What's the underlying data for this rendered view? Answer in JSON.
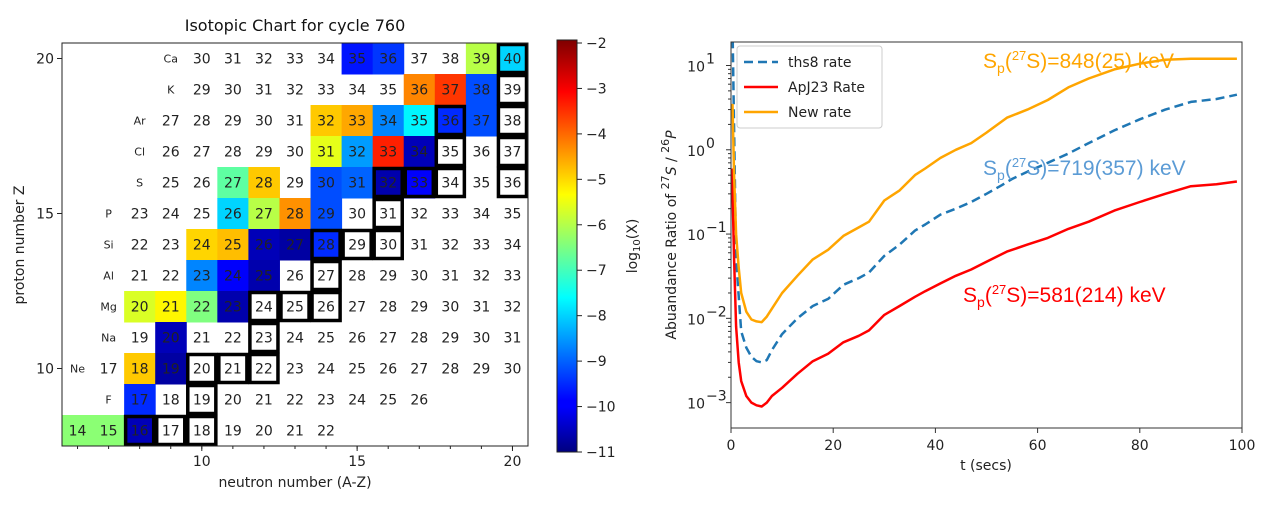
{
  "chart_data": [
    {
      "type": "heatmap",
      "title": "Isotopic Chart for cycle 760",
      "xlabel": "neutron number (A-Z)",
      "ylabel": "proton number Z",
      "xlim": [
        5.5,
        20.5
      ],
      "ylim": [
        7.5,
        20.5
      ],
      "xticks": [
        10,
        15,
        20
      ],
      "yticks": [
        10,
        15,
        20
      ],
      "colorbar": {
        "label": "log10(X)",
        "colormap": "jet",
        "range": [
          -11,
          -2
        ],
        "ticks": [
          -2,
          -3,
          -4,
          -5,
          -6,
          -7,
          -8,
          -9,
          -10,
          -11
        ]
      },
      "rows": [
        {
          "z": 20,
          "element": "Ca",
          "label_n": 9,
          "n_start": 10,
          "mass_numbers": [
            30,
            31,
            32,
            33,
            34,
            35,
            36,
            37,
            38,
            39,
            40
          ],
          "log10_abundance": {
            "15": -9.7,
            "16": -9.4,
            "19": -6.0,
            "20": -8.0
          },
          "stable_n": [
            20
          ]
        },
        {
          "z": 19,
          "element": "K",
          "label_n": 9,
          "n_start": 10,
          "mass_numbers": [
            29,
            30,
            31,
            32,
            33,
            34,
            35,
            36,
            37,
            38,
            39
          ],
          "log10_abundance": {
            "17": -4.3,
            "18": -3.6,
            "19": -9.2
          },
          "stable_n": [
            20
          ]
        },
        {
          "z": 18,
          "element": "Ar",
          "label_n": 8,
          "n_start": 9,
          "mass_numbers": [
            27,
            28,
            29,
            30,
            31,
            32,
            33,
            34,
            35,
            36,
            37,
            38
          ],
          "log10_abundance": {
            "14": -4.9,
            "15": -4.6,
            "16": -8.7,
            "17": -7.7,
            "18": -9.5,
            "19": -9.2
          },
          "stable_n": [
            18,
            20
          ]
        },
        {
          "z": 17,
          "element": "Cl",
          "label_n": 8,
          "n_start": 9,
          "mass_numbers": [
            26,
            27,
            28,
            29,
            30,
            31,
            32,
            33,
            34,
            35,
            36,
            37
          ],
          "log10_abundance": {
            "14": -5.6,
            "15": -8.5,
            "16": -3.4,
            "17": -10.5
          },
          "stable_n": [
            18,
            20
          ]
        },
        {
          "z": 16,
          "element": "S",
          "label_n": 8,
          "n_start": 9,
          "mass_numbers": [
            25,
            26,
            27,
            28,
            29,
            30,
            31,
            32,
            33,
            34,
            35,
            36
          ],
          "log10_abundance": {
            "11": -6.8,
            "12": -4.9,
            "14": -9.2,
            "15": -9.0,
            "16": -10.6,
            "17": -9.9
          },
          "stable_n": [
            16,
            17,
            18,
            20
          ]
        },
        {
          "z": 15,
          "element": "P",
          "label_n": 7,
          "n_start": 8,
          "mass_numbers": [
            23,
            24,
            25,
            26,
            27,
            28,
            29,
            30,
            31,
            32,
            33,
            34,
            35
          ],
          "log10_abundance": {
            "11": -8.0,
            "12": -6.0,
            "13": -4.4,
            "14": -9.2
          },
          "stable_n": [
            16
          ]
        },
        {
          "z": 14,
          "element": "Si",
          "label_n": 7,
          "n_start": 8,
          "mass_numbers": [
            22,
            23,
            24,
            25,
            26,
            27,
            28,
            29,
            30,
            31,
            32,
            33,
            34
          ],
          "log10_abundance": {
            "10": -5.0,
            "11": -4.8,
            "12": -10.5,
            "13": -10.7,
            "14": -9.5
          },
          "stable_n": [
            14,
            15,
            16
          ]
        },
        {
          "z": 13,
          "element": "Al",
          "label_n": 7,
          "n_start": 8,
          "mass_numbers": [
            21,
            22,
            23,
            24,
            25,
            26,
            27,
            28,
            29,
            30,
            31,
            32,
            33
          ],
          "log10_abundance": {
            "10": -8.7,
            "11": -9.9,
            "12": -10.6
          },
          "stable_n": [
            14
          ]
        },
        {
          "z": 12,
          "element": "Mg",
          "label_n": 7,
          "n_start": 8,
          "mass_numbers": [
            20,
            21,
            22,
            23,
            24,
            25,
            26,
            27,
            28,
            29,
            30,
            31,
            32
          ],
          "log10_abundance": {
            "8": -5.7,
            "9": -5.3,
            "10": -6.5,
            "11": -10.6
          },
          "stable_n": [
            12,
            13,
            14
          ]
        },
        {
          "z": 11,
          "element": "Na",
          "label_n": 7,
          "n_start": 8,
          "mass_numbers": [
            19,
            20,
            21,
            22,
            23,
            24,
            25,
            26,
            27,
            28,
            29,
            30,
            31
          ],
          "log10_abundance": {
            "9": -10.5
          },
          "stable_n": [
            12
          ]
        },
        {
          "z": 10,
          "element": "Ne",
          "label_n": 6,
          "n_start": 7,
          "mass_numbers": [
            17,
            18,
            19,
            20,
            21,
            22,
            23,
            24,
            25,
            26,
            27,
            28,
            29,
            30
          ],
          "log10_abundance": {
            "8": -4.9,
            "9": -10.7
          },
          "stable_n": [
            10,
            11,
            12
          ]
        },
        {
          "z": 9,
          "element": "F",
          "label_n": 7,
          "n_start": 8,
          "mass_numbers": [
            17,
            18,
            19,
            20,
            21,
            22,
            23,
            24,
            25,
            26
          ],
          "log10_abundance": {
            "8": -9.5
          },
          "stable_n": [
            10
          ]
        },
        {
          "z": 8,
          "element": "",
          "label_n": 5,
          "n_start": 6,
          "mass_numbers": [
            14,
            15,
            16,
            17,
            18,
            19,
            20,
            21,
            22
          ],
          "log10_abundance": {
            "6": -6.4,
            "7": -6.4,
            "8": -10.5
          },
          "stable_n": [
            8,
            9,
            10
          ]
        }
      ]
    },
    {
      "type": "line",
      "xlabel": "t (secs)",
      "ylabel": {
        "prefix": "Abuandance Ratio of ",
        "sup1": "27",
        "sym1": "S",
        "sep": " / ",
        "sup2": "26",
        "sym2": "P"
      },
      "xlim": [
        0,
        100
      ],
      "ylim": [
        0.0005,
        19
      ],
      "yscale": "log",
      "xticks": [
        0,
        20,
        40,
        60,
        80,
        100
      ],
      "yticks": [
        {
          "base": "10",
          "exp": "1",
          "value": 10
        },
        {
          "base": "10",
          "exp": "0",
          "value": 1
        },
        {
          "base": "10",
          "exp": "−1",
          "value": 0.1
        },
        {
          "base": "10",
          "exp": "−2",
          "value": 0.01
        },
        {
          "base": "10",
          "exp": "−3",
          "value": 0.001
        }
      ],
      "legend_position": "top-left",
      "series": [
        {
          "name": "ths8 rate",
          "color": "#1f77b4",
          "style": "dashed",
          "x": [
            0.3,
            1,
            2,
            3,
            4,
            5,
            6,
            7,
            8,
            10,
            13,
            16,
            19,
            22,
            25,
            27,
            30,
            33,
            36,
            38,
            41,
            44,
            47,
            50,
            53,
            55,
            58,
            62,
            66,
            70,
            75,
            80,
            85,
            90,
            95,
            99
          ],
          "y": [
            30,
            0.05,
            0.007,
            0.0045,
            0.0035,
            0.0031,
            0.003,
            0.0032,
            0.0042,
            0.0065,
            0.01,
            0.014,
            0.017,
            0.025,
            0.03,
            0.035,
            0.055,
            0.075,
            0.11,
            0.13,
            0.17,
            0.2,
            0.24,
            0.3,
            0.38,
            0.45,
            0.55,
            0.7,
            0.9,
            1.2,
            1.7,
            2.3,
            3.0,
            3.7,
            4.0,
            4.5
          ]
        },
        {
          "name": "ApJ23 Rate",
          "color": "#ff0000",
          "style": "solid",
          "x": [
            0.2,
            0.6,
            1,
            1.5,
            2,
            3,
            4,
            5,
            6,
            7,
            8,
            10,
            13,
            16,
            19,
            22,
            25,
            27,
            30,
            33,
            36,
            38,
            41,
            44,
            47,
            50,
            54,
            58,
            62,
            66,
            70,
            75,
            80,
            85,
            90,
            95,
            99
          ],
          "y": [
            0.6,
            0.05,
            0.008,
            0.003,
            0.0018,
            0.0012,
            0.001,
            0.00093,
            0.0009,
            0.001,
            0.0012,
            0.0015,
            0.0022,
            0.0031,
            0.0038,
            0.0052,
            0.0062,
            0.0072,
            0.011,
            0.014,
            0.018,
            0.021,
            0.026,
            0.032,
            0.038,
            0.047,
            0.062,
            0.075,
            0.09,
            0.115,
            0.14,
            0.19,
            0.24,
            0.3,
            0.37,
            0.39,
            0.42
          ]
        },
        {
          "name": "New rate",
          "color": "#ffa500",
          "style": "solid",
          "x": [
            0.3,
            0.6,
            1,
            1.5,
            2,
            3,
            4,
            5,
            6,
            7,
            8,
            10,
            13,
            16,
            19,
            22,
            25,
            27,
            30,
            33,
            36,
            38,
            41,
            44,
            47,
            50,
            54,
            58,
            62,
            66,
            70,
            75,
            80,
            85,
            90,
            95,
            99
          ],
          "y": [
            3.5,
            0.5,
            0.1,
            0.04,
            0.02,
            0.012,
            0.0097,
            0.0092,
            0.009,
            0.0105,
            0.013,
            0.02,
            0.032,
            0.05,
            0.065,
            0.095,
            0.12,
            0.14,
            0.25,
            0.33,
            0.5,
            0.6,
            0.8,
            1.0,
            1.2,
            1.6,
            2.4,
            3.0,
            3.9,
            5.5,
            7.0,
            9.0,
            10.5,
            11.7,
            12,
            12,
            12
          ]
        }
      ],
      "annotations": [
        {
          "color": "#ffa500",
          "s": "S",
          "sub": "p",
          "sup": "27",
          "text": "S)=848(25) keV"
        },
        {
          "color": "#5b9bd5",
          "s": "S",
          "sub": "p",
          "sup": "27",
          "text": "S)=719(357) keV"
        },
        {
          "color": "#ff0000",
          "s": "S",
          "sub": "p",
          "sup": "27",
          "text": "S)=581(214) keV"
        }
      ]
    }
  ]
}
